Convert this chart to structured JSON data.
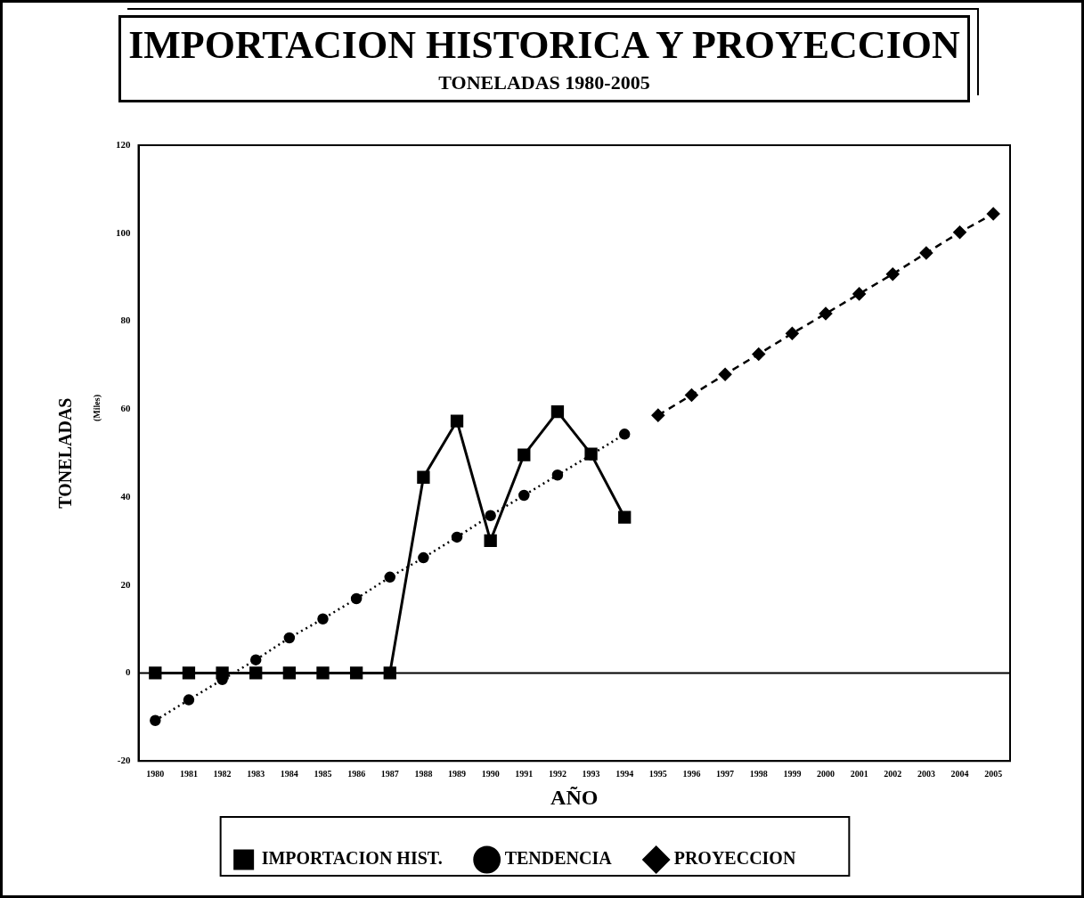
{
  "chart_data": {
    "type": "line",
    "title": "IMPORTACION HISTORICA Y PROYECCION",
    "subtitle": "TONELADAS 1980-2005",
    "xlabel": "AÑO",
    "ylabel": "TONELADAS",
    "annotations": [
      "(Miles)"
    ],
    "categories": [
      "1980",
      "1981",
      "1982",
      "1983",
      "1984",
      "1985",
      "1986",
      "1987",
      "1988",
      "1989",
      "1990",
      "1991",
      "1992",
      "1993",
      "1994",
      "1995",
      "1996",
      "1997",
      "1998",
      "1999",
      "2000",
      "2001",
      "2002",
      "2003",
      "2004",
      "2005"
    ],
    "series": [
      {
        "name": "IMPORTACION HIST.",
        "color": "#000000",
        "marker": "square",
        "line_style": "solid",
        "values": [
          0,
          0,
          0,
          0,
          0,
          0,
          0,
          0,
          44.5,
          57.3,
          30.1,
          49.6,
          59.4,
          49.8,
          35.4,
          null,
          null,
          null,
          null,
          null,
          null,
          null,
          null,
          null,
          null,
          null
        ]
      },
      {
        "name": "TENDENCIA",
        "color": "#000000",
        "marker": "circle",
        "line_style": "dotted",
        "values": [
          -10.8,
          -6.1,
          -1.5,
          3.0,
          8.0,
          12.3,
          16.9,
          21.8,
          26.2,
          30.9,
          35.8,
          40.4,
          45.0,
          49.6,
          54.3,
          null,
          null,
          null,
          null,
          null,
          null,
          null,
          null,
          null,
          null,
          null
        ]
      },
      {
        "name": "PROYECCION",
        "color": "#000000",
        "marker": "diamond",
        "line_style": "dashed",
        "values": [
          null,
          null,
          null,
          null,
          null,
          null,
          null,
          null,
          null,
          null,
          null,
          null,
          null,
          null,
          null,
          58.6,
          63.2,
          67.9,
          72.5,
          77.2,
          81.7,
          86.2,
          90.7,
          95.5,
          100.2,
          104.4
        ]
      }
    ],
    "ylim": [
      -20,
      120
    ],
    "yticks": [
      -20,
      0,
      20,
      40,
      60,
      80,
      100,
      120
    ],
    "grid": false,
    "legend": "bottom",
    "ref_lines": [
      {
        "axis": "y",
        "value": 0,
        "color": "#000000",
        "line_style": "solid"
      }
    ]
  }
}
